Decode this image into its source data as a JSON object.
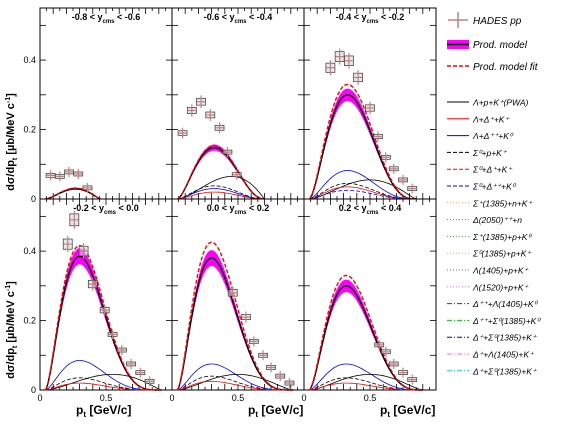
{
  "chart_data": {
    "type": "line",
    "ylabel": "dσ/dp",
    "ylabel_sub": "t",
    "yunit": "[µb/MeV c",
    "yunit_sup": "-1",
    "yunit_end": "]",
    "xlabel": "p",
    "xlabel_sub": "t",
    "xunit": "[GeV/c]",
    "xlim": [
      0,
      1
    ],
    "ylim": [
      0,
      0.55
    ],
    "y_ticks": [
      "0",
      "0.2",
      "0.4"
    ],
    "x_ticks": [
      "0",
      "0.5"
    ],
    "legend_main": [
      {
        "label": "HADES pp",
        "color": "#c0807f"
      },
      {
        "label": "Prod. model",
        "color": "#ff00ff"
      },
      {
        "label": "Prod. model fit",
        "color": "#ff0000"
      }
    ],
    "legend_channels": [
      {
        "label": "Λ+p+K⁺(PWA)",
        "color": "#000000",
        "dash": ""
      },
      {
        "label": "Λ+Δ⁺+K⁺",
        "color": "#ff0000",
        "dash": ""
      },
      {
        "label": "Λ+Δ⁺⁺+K⁰",
        "color": "#0000ff",
        "dash": ""
      },
      {
        "label": "Σ⁰+p+K⁺",
        "color": "#000000",
        "dash": "4,2"
      },
      {
        "label": "Σ⁰+Δ⁺+K⁺",
        "color": "#ff0000",
        "dash": "4,2"
      },
      {
        "label": "Σ⁰+Δ⁺⁺+K⁰",
        "color": "#0000ff",
        "dash": "4,2"
      },
      {
        "label": "Σ⁺(1385)+n+K⁺",
        "color": "#ffa050",
        "dash": "1,2"
      },
      {
        "label": "Δ(2050)⁺⁺+n",
        "color": "#777777",
        "dash": "1,2"
      },
      {
        "label": "Σ⁺(1385)+p+K⁰",
        "color": "#44aa44",
        "dash": "1,2"
      },
      {
        "label": "Σ⁰(1385)+p+K⁺",
        "color": "#cccc33",
        "dash": "1,2"
      },
      {
        "label": "Λ(1405)+p+K⁺",
        "color": "#6666cc",
        "dash": "1,2"
      },
      {
        "label": "Λ(1520)+p+K⁺",
        "color": "#ff66ff",
        "dash": "1,2"
      },
      {
        "label": "Δ⁺⁺+Λ(1405)+K⁰",
        "color": "#cc0000",
        "dash": "5,2,1,2"
      },
      {
        "label": "Δ⁺⁺+Σ⁰(1385)+K⁰",
        "color": "#00cc00",
        "dash": "5,2,1,2"
      },
      {
        "label": "Δ⁺+Σ⁰(1385)+K⁺",
        "color": "#0000cc",
        "dash": "5,2,1,2"
      },
      {
        "label": "Δ⁺+Λ(1405)+K⁺",
        "color": "#ff66ff",
        "dash": "5,2,1,2"
      },
      {
        "label": "Δ⁺+Σ⁰(1385)+K⁺",
        "color": "#00cccc",
        "dash": "5,2,1,2"
      }
    ],
    "panels": [
      {
        "title": "-0.8 < y",
        "title_sub": "cms",
        "title_end": " < -0.6",
        "model_peak": 0.03,
        "model_peak_x": 0.27,
        "model_end": 0.46,
        "fit_factor": 1.05,
        "hades": [
          [
            0.08,
            0.068
          ],
          [
            0.15,
            0.065
          ],
          [
            0.22,
            0.078
          ],
          [
            0.29,
            0.072
          ],
          [
            0.36,
            0.032
          ]
        ],
        "channels": [
          {
            "channel": 0,
            "peak": 0.028
          }
        ]
      },
      {
        "title": "-0.6 < y",
        "title_sub": "cms",
        "title_end": " < -0.4",
        "model_peak": 0.148,
        "model_peak_x": 0.32,
        "model_end": 0.7,
        "fit_factor": 1.04,
        "hades": [
          [
            0.08,
            0.19
          ],
          [
            0.15,
            0.255
          ],
          [
            0.22,
            0.28
          ],
          [
            0.29,
            0.242
          ],
          [
            0.36,
            0.205
          ],
          [
            0.42,
            0.135
          ],
          [
            0.49,
            0.07
          ]
        ],
        "channels": [
          {
            "channel": 0,
            "peak": 0.065,
            "x": 0.45
          },
          {
            "channel": 3,
            "peak": 0.038
          },
          {
            "channel": 2,
            "peak": 0.03
          },
          {
            "channel": 1,
            "peak": 0.02
          }
        ]
      },
      {
        "title": "-0.4 < y",
        "title_sub": "cms",
        "title_end": " < -0.2",
        "model_peak": 0.3,
        "model_peak_x": 0.33,
        "model_end": 0.85,
        "fit_factor": 1.1,
        "hades": [
          [
            0.2,
            0.378
          ],
          [
            0.27,
            0.41
          ],
          [
            0.34,
            0.398
          ],
          [
            0.41,
            0.35
          ],
          [
            0.5,
            0.262
          ],
          [
            0.56,
            0.18
          ],
          [
            0.62,
            0.12
          ],
          [
            0.68,
            0.087
          ],
          [
            0.75,
            0.055
          ],
          [
            0.82,
            0.03
          ]
        ],
        "channels": [
          {
            "channel": 2,
            "peak": 0.082
          },
          {
            "channel": 0,
            "peak": 0.055,
            "x": 0.5
          },
          {
            "channel": 3,
            "peak": 0.045
          },
          {
            "channel": 1,
            "peak": 0.035
          },
          {
            "channel": 5,
            "peak": 0.025
          }
        ]
      },
      {
        "title": "-0.2 < y",
        "title_sub": "cms",
        "title_end": " < 0.0",
        "model_peak": 0.385,
        "model_peak_x": 0.3,
        "model_end": 0.92,
        "fit_factor": 1.08,
        "hades": [
          [
            0.21,
            0.42
          ],
          [
            0.26,
            0.49
          ],
          [
            0.33,
            0.4
          ],
          [
            0.4,
            0.305
          ],
          [
            0.49,
            0.23
          ],
          [
            0.55,
            0.16
          ],
          [
            0.62,
            0.115
          ],
          [
            0.69,
            0.075
          ],
          [
            0.76,
            0.05
          ],
          [
            0.83,
            0.025
          ]
        ],
        "channels": [
          {
            "channel": 2,
            "peak": 0.085
          },
          {
            "channel": 0,
            "peak": 0.045,
            "x": 0.55
          },
          {
            "channel": 3,
            "peak": 0.035
          },
          {
            "channel": 1,
            "peak": 0.02
          }
        ]
      },
      {
        "title": "0.0 < y",
        "title_sub": "cms",
        "title_end": " < 0.2",
        "model_peak": 0.38,
        "model_peak_x": 0.3,
        "model_end": 0.92,
        "fit_factor": 1.12,
        "hades": [
          [
            0.46,
            0.28
          ],
          [
            0.56,
            0.21
          ],
          [
            0.62,
            0.14
          ],
          [
            0.69,
            0.1
          ],
          [
            0.75,
            0.065
          ],
          [
            0.82,
            0.04
          ],
          [
            0.89,
            0.02
          ]
        ],
        "channels": [
          {
            "channel": 2,
            "peak": 0.075
          },
          {
            "channel": 0,
            "peak": 0.045,
            "x": 0.5
          },
          {
            "channel": 3,
            "peak": 0.04
          },
          {
            "channel": 1,
            "peak": 0.025
          }
        ]
      },
      {
        "title": "0.2 < y",
        "title_sub": "cms",
        "title_end": " < 0.4",
        "model_peak": 0.3,
        "model_peak_x": 0.32,
        "model_end": 0.9,
        "fit_factor": 1.1,
        "hades": [
          [
            0.57,
            0.13
          ],
          [
            0.62,
            0.11
          ],
          [
            0.68,
            0.075
          ],
          [
            0.75,
            0.05
          ],
          [
            0.82,
            0.03
          ]
        ],
        "channels": [
          {
            "channel": 2,
            "peak": 0.075
          },
          {
            "channel": 0,
            "peak": 0.045,
            "x": 0.5
          },
          {
            "channel": 3,
            "peak": 0.035
          },
          {
            "channel": 1,
            "peak": 0.02
          }
        ]
      }
    ]
  }
}
